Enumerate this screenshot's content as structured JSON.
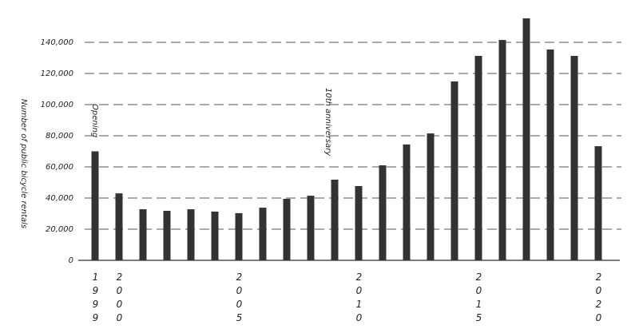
{
  "chart_data": {
    "type": "bar",
    "y_label": "Number of public bicycle rentals",
    "annotations": [
      "Opening",
      "10th anniversary"
    ],
    "categories": [
      "1999",
      "2000",
      null,
      null,
      null,
      null,
      "2005",
      null,
      null,
      null,
      null,
      "2010",
      null,
      null,
      null,
      null,
      "2015",
      null,
      null,
      null,
      null,
      "2020"
    ],
    "values": [
      70000,
      43000,
      32800,
      31800,
      32800,
      31300,
      30300,
      33800,
      39500,
      41500,
      51800,
      47700,
      61000,
      74400,
      81500,
      114900,
      131300,
      141500,
      155400,
      135400,
      131300,
      73300
    ],
    "color": "#333333",
    "ylim": [
      0,
      160000
    ],
    "yticks": [
      0,
      {
        "value": 20000,
        "label": "20,000"
      },
      {
        "value": 40000,
        "label": "40,000"
      },
      {
        "value": 60000,
        "label": "60,000"
      },
      {
        "value": 80000,
        "label": "80,000"
      },
      {
        "value": 100000,
        "label": "100,000"
      },
      {
        "value": 120000,
        "label": "120,000"
      },
      {
        "value": 140000,
        "label": "140,000"
      }
    ],
    "grid": true
  }
}
